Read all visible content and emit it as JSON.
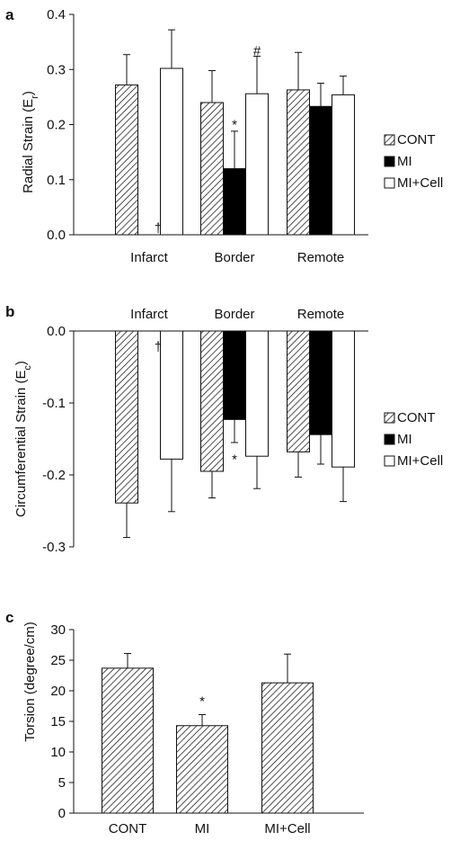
{
  "legend": {
    "items": [
      {
        "key": "cont",
        "label": "CONT",
        "style": "hatched"
      },
      {
        "key": "mi",
        "label": "MI",
        "style": "solid"
      },
      {
        "key": "mi_cell",
        "label": "MI+Cell",
        "style": "open"
      }
    ]
  },
  "colors": {
    "mi": "#000000",
    "open": "#ffffff",
    "axis": "#111111",
    "hatch": "#222222"
  },
  "chart_data": [
    {
      "panel": "a",
      "type": "bar",
      "ylabel": "Radial Strain (E",
      "ylabel_sub": "r",
      "ylabel_close": ")",
      "ylim": [
        0,
        0.4
      ],
      "yticks": [
        "0.0",
        "0.1",
        "0.2",
        "0.3",
        "0.4"
      ],
      "ytick_values": [
        0,
        0.1,
        0.2,
        0.3,
        0.4
      ],
      "categories": [
        "Infarct",
        "Border",
        "Remote"
      ],
      "category_position": "bottom",
      "series": [
        {
          "name": "CONT",
          "values": [
            0.272,
            0.24,
            0.263
          ],
          "errors": [
            0.055,
            0.058,
            0.068
          ]
        },
        {
          "name": "MI",
          "values": [
            0,
            0.12,
            0.233
          ],
          "errors": [
            0,
            0.068,
            0.042
          ]
        },
        {
          "name": "MI+Cell",
          "values": [
            0.302,
            0.256,
            0.254
          ],
          "errors": [
            0.07,
            0.068,
            0.034
          ]
        }
      ],
      "annotations": [
        {
          "text": "†",
          "category": 0,
          "series": 1,
          "value": 0.012
        },
        {
          "text": "*",
          "category": 1,
          "series": 1,
          "value": 0.2
        },
        {
          "text": "#",
          "category": 1,
          "series": 2,
          "value": 0.334
        }
      ]
    },
    {
      "panel": "b",
      "type": "bar",
      "ylabel": "Circumferential Strain (E",
      "ylabel_sub": "c",
      "ylabel_close": ")",
      "ylim": [
        -0.3,
        0
      ],
      "yticks": [
        "0.0",
        "-0.1",
        "-0.2",
        "-0.3"
      ],
      "ytick_values": [
        0,
        -0.1,
        -0.2,
        -0.3
      ],
      "categories": [
        "Infarct",
        "Border",
        "Remote"
      ],
      "category_position": "top",
      "series": [
        {
          "name": "CONT",
          "values": [
            -0.239,
            -0.195,
            -0.168
          ],
          "errors": [
            0.048,
            0.037,
            0.035
          ]
        },
        {
          "name": "MI",
          "values": [
            0,
            -0.123,
            -0.144
          ],
          "errors": [
            0,
            0.032,
            0.041
          ]
        },
        {
          "name": "MI+Cell",
          "values": [
            -0.178,
            -0.174,
            -0.189
          ],
          "errors": [
            0.073,
            0.045,
            0.048
          ]
        }
      ],
      "annotations": [
        {
          "text": "†",
          "category": 0,
          "series": 1,
          "value": -0.022
        },
        {
          "text": "*",
          "category": 1,
          "series": 1,
          "value": -0.178
        }
      ]
    },
    {
      "panel": "c",
      "type": "bar",
      "ylabel": "Torsion (degree/cm)",
      "ylabel_sub": "",
      "ylabel_close": "",
      "ylim": [
        0,
        30
      ],
      "yticks": [
        "0",
        "5",
        "10",
        "15",
        "20",
        "25",
        "30"
      ],
      "ytick_values": [
        0,
        5,
        10,
        15,
        20,
        25,
        30
      ],
      "categories": [
        "CONT",
        "MI",
        "MI+Cell"
      ],
      "category_position": "bottom",
      "series": [
        {
          "name": "",
          "values": [
            23.7,
            14.3,
            21.3
          ],
          "errors": [
            2.4,
            1.8,
            4.7
          ]
        }
      ],
      "annotations": [
        {
          "text": "*",
          "category": 1,
          "series": 0,
          "value": 18.3
        }
      ]
    }
  ]
}
